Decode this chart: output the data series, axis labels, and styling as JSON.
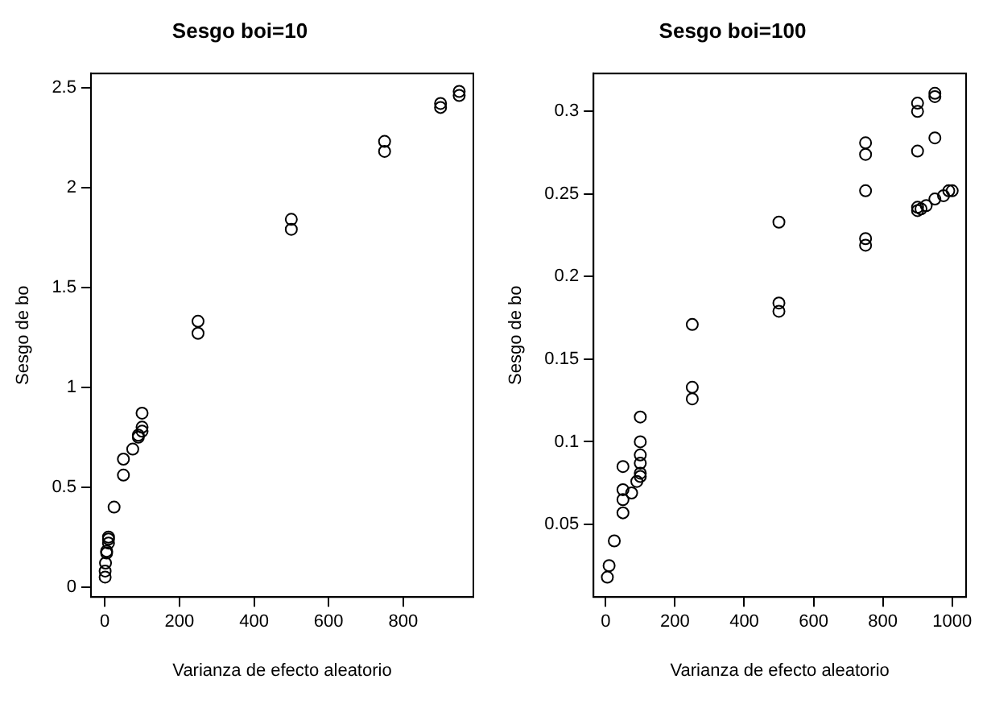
{
  "chart_data": [
    {
      "type": "scatter",
      "title": "Sesgo boi=10",
      "xlabel": "Varianza de efecto aleatorio",
      "ylabel": "Sesgo de bo",
      "marker": "circle",
      "color": "#000000",
      "x": [
        1,
        1,
        2,
        5,
        5,
        10,
        10,
        10,
        25,
        50,
        50,
        75,
        90,
        90,
        100,
        100,
        100,
        250,
        250,
        500,
        500,
        750,
        750,
        900,
        900,
        950,
        950
      ],
      "values": [
        0.05,
        0.08,
        0.12,
        0.17,
        0.18,
        0.22,
        0.24,
        0.25,
        0.4,
        0.56,
        0.64,
        0.69,
        0.75,
        0.76,
        0.78,
        0.8,
        0.87,
        1.27,
        1.33,
        1.79,
        1.84,
        2.18,
        2.23,
        2.4,
        2.42,
        2.46,
        2.48
      ],
      "xlim": [
        -37,
        988
      ],
      "ylim": [
        -0.05,
        2.57
      ],
      "xticks": [
        0,
        200,
        400,
        600,
        800
      ],
      "yticks": [
        0,
        0.5,
        1,
        1.5,
        2,
        2.5
      ]
    },
    {
      "type": "scatter",
      "title": "Sesgo boi=100",
      "xlabel": "Varianza de efecto aleatorio",
      "ylabel": "Sesgo de bo",
      "marker": "circle",
      "color": "#000000",
      "x": [
        5,
        10,
        25,
        50,
        50,
        50,
        50,
        75,
        90,
        100,
        100,
        100,
        100,
        100,
        100,
        250,
        250,
        250,
        500,
        500,
        500,
        750,
        750,
        750,
        750,
        750,
        900,
        900,
        900,
        900,
        900,
        910,
        925,
        950,
        950,
        950,
        950,
        975,
        990,
        1000
      ],
      "values": [
        0.018,
        0.025,
        0.04,
        0.085,
        0.071,
        0.065,
        0.057,
        0.069,
        0.076,
        0.115,
        0.1,
        0.092,
        0.087,
        0.081,
        0.079,
        0.171,
        0.133,
        0.126,
        0.233,
        0.184,
        0.179,
        0.281,
        0.274,
        0.252,
        0.223,
        0.219,
        0.305,
        0.3,
        0.276,
        0.242,
        0.24,
        0.241,
        0.243,
        0.311,
        0.309,
        0.284,
        0.247,
        0.249,
        0.252,
        0.252
      ],
      "xlim": [
        -35,
        1040
      ],
      "ylim": [
        0.006,
        0.323
      ],
      "xticks": [
        0,
        200,
        400,
        600,
        800,
        1000
      ],
      "yticks": [
        0.05,
        0.1,
        0.15,
        0.2,
        0.25,
        0.3
      ]
    }
  ]
}
